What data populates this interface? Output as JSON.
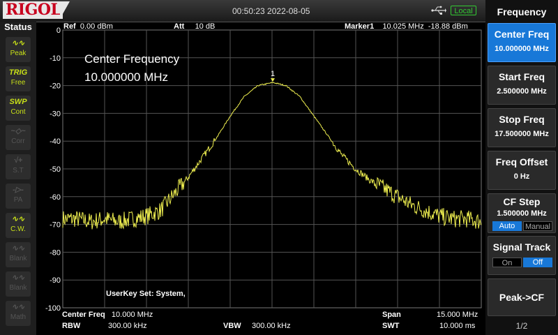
{
  "brand": "RIGOL",
  "datetime": "00:50:23 2022-08-05",
  "remote": "Local",
  "status": {
    "title": "Status",
    "items": [
      {
        "icon": "∿∿",
        "label": "Peak",
        "active": true
      },
      {
        "icon": "TRIG",
        "label": "Free",
        "active": true
      },
      {
        "icon": "SWP",
        "label": "Cont",
        "active": true
      },
      {
        "icon": "~◇~",
        "label": "Corr",
        "active": false
      },
      {
        "icon": "√+",
        "label": "S.T",
        "active": false
      },
      {
        "icon": "-▷-",
        "label": "PA",
        "active": false
      },
      {
        "icon": "∿∿",
        "label": "C.W.",
        "active": true
      },
      {
        "icon": "∿∿",
        "label": "Blank",
        "active": false
      },
      {
        "icon": "∿∿",
        "label": "Blank",
        "active": false
      },
      {
        "icon": "∿∿",
        "label": "Math",
        "active": false
      }
    ]
  },
  "header": {
    "ref_label": "Ref",
    "ref_value": "0.00 dBm",
    "att_label": "Att",
    "att_value": "10 dB",
    "marker_label": "Marker1",
    "marker_freq": "10.025 MHz",
    "marker_amp": "-18.88 dBm"
  },
  "overlay": {
    "line1": "Center Frequency",
    "line2": "10.000000 MHz"
  },
  "userkey": "UserKey Set:    System,",
  "marker_num": "1",
  "footer": {
    "center_label": "Center Freq",
    "center_value": "10.000 MHz",
    "span_label": "Span",
    "span_value": "15.000 MHz",
    "rbw_label": "RBW",
    "rbw_value": "300.00 kHz",
    "vbw_label": "VBW",
    "vbw_value": "300.00 kHz",
    "swt_label": "SWT",
    "swt_value": "10.000 ms"
  },
  "menu": {
    "title": "Frequency",
    "center_freq": {
      "label": "Center Freq",
      "value": "10.000000 MHz"
    },
    "start_freq": {
      "label": "Start Freq",
      "value": "2.500000 MHz"
    },
    "stop_freq": {
      "label": "Stop Freq",
      "value": "17.500000 MHz"
    },
    "freq_offset": {
      "label": "Freq Offset",
      "value": "0 Hz"
    },
    "cf_step": {
      "label": "CF Step",
      "value": "1.500000 MHz",
      "auto": "Auto",
      "manual": "Manual"
    },
    "signal_track": {
      "label": "Signal Track",
      "on": "On",
      "off": "Off"
    },
    "peak_cf": {
      "label": "Peak->CF"
    },
    "page": "1/2"
  },
  "chart_data": {
    "type": "line",
    "xlabel": "",
    "ylabel": "",
    "xlim": [
      2.5,
      17.5
    ],
    "ylim": [
      -100,
      0
    ],
    "y_ticks": [
      "0",
      "-10",
      "-20",
      "-30",
      "-40",
      "-50",
      "-60",
      "-70",
      "-80",
      "-90",
      "-100"
    ],
    "grid": true,
    "trace_color": "#f0f050",
    "series": [
      {
        "x": [
          2.5,
          3.0,
          3.5,
          4.0,
          4.5,
          5.0,
          5.5,
          6.0,
          6.5,
          7.0,
          7.5,
          8.0,
          8.5,
          9.0,
          9.5,
          10.0,
          10.025,
          10.5,
          11.0,
          11.5,
          12.0,
          12.5,
          13.0,
          13.5,
          14.0,
          14.5,
          15.0,
          15.5,
          16.0,
          16.5,
          17.0,
          17.5
        ],
        "values": [
          -68,
          -68,
          -69,
          -68,
          -69,
          -68,
          -67,
          -65,
          -59,
          -53,
          -46,
          -39,
          -31,
          -24,
          -20,
          -19,
          -18.88,
          -20,
          -24,
          -31,
          -38,
          -45,
          -50,
          -54,
          -57,
          -60,
          -63,
          -65,
          -67,
          -68,
          -68,
          -69
        ]
      }
    ]
  }
}
